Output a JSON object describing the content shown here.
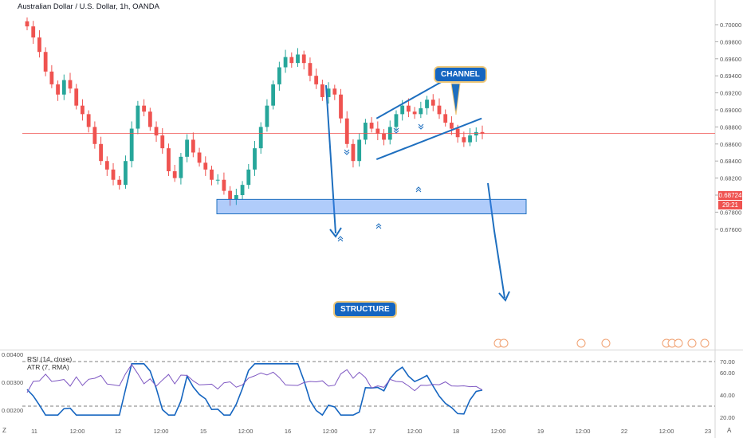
{
  "header": {
    "symbol_title": "Australian Dollar / U.S. Dollar, 1h, OANDA"
  },
  "annotations": {
    "channel": "CHANNEL",
    "structure": "STRUCTURE"
  },
  "current_price": {
    "value": "0.68724",
    "countdown": "29:21"
  },
  "oscillator": {
    "rsi_label": "RSI (14, close)",
    "atr_label": "ATR (7, RMA)"
  },
  "corner_labels": {
    "bottom_left": "Z",
    "bottom_right": "A"
  },
  "colors": {
    "up": "#26a69a",
    "down": "#ef5350",
    "accent": "#1e6fbf",
    "rsi_line": "#1565c0",
    "atr_line": "#7e57c2"
  },
  "chart_data": [
    {
      "type": "candlestick",
      "title": "Australian Dollar / U.S. Dollar, 1h, OANDA",
      "y_axis_ticks": [
        "0.70000",
        "0.69800",
        "0.69600",
        "0.69400",
        "0.69200",
        "0.69000",
        "0.68800",
        "0.68600",
        "0.68400",
        "0.68200",
        "0.68000",
        "0.67800",
        "0.67600"
      ],
      "ylim": [
        0.6755,
        0.702
      ],
      "x_axis_ticks": [
        "11",
        "12:00",
        "12",
        "12:00",
        "15",
        "12:00",
        "16",
        "12:00",
        "17",
        "12:00",
        "18",
        "12:00",
        "19",
        "12:00",
        "22",
        "12:00",
        "23"
      ],
      "close_path_approx": [
        0.6998,
        0.6985,
        0.6968,
        0.6945,
        0.693,
        0.6918,
        0.6935,
        0.6925,
        0.6905,
        0.6895,
        0.688,
        0.686,
        0.684,
        0.683,
        0.6818,
        0.6812,
        0.684,
        0.6878,
        0.6905,
        0.6898,
        0.688,
        0.687,
        0.6855,
        0.6828,
        0.682,
        0.6845,
        0.6865,
        0.685,
        0.6838,
        0.683,
        0.6818,
        0.6818,
        0.6805,
        0.6795,
        0.68,
        0.6812,
        0.683,
        0.6855,
        0.688,
        0.6905,
        0.693,
        0.695,
        0.6962,
        0.6955,
        0.6965,
        0.6955,
        0.694,
        0.693,
        0.6915,
        0.6925,
        0.6918,
        0.689,
        0.686,
        0.684,
        0.6865,
        0.6885,
        0.6878,
        0.6872,
        0.6865,
        0.688,
        0.6895,
        0.6905,
        0.6898,
        0.6895,
        0.6902,
        0.6912,
        0.6905,
        0.6895,
        0.6885,
        0.6878,
        0.6868,
        0.6862,
        0.687,
        0.6874,
        0.6872
      ],
      "current_price": 0.68724,
      "drawings": {
        "channel_upper": [
          [
            17.05,
            0.689
          ],
          [
            17.95,
            0.694
          ]
        ],
        "channel_lower": [
          [
            17.05,
            0.6842
          ],
          [
            18.3,
            0.689
          ]
        ],
        "structure_zone": [
          0.6778,
          0.6795
        ]
      }
    },
    {
      "type": "line",
      "series": [
        {
          "name": "RSI (14, close)",
          "y_axis_ticks": [
            "70.00",
            "60.00",
            "40.00",
            "20.00"
          ],
          "levels": [
            70,
            30
          ]
        },
        {
          "name": "ATR (7, RMA)",
          "y_axis_ticks": [
            "0.00400",
            "0.00300",
            "0.00200"
          ]
        }
      ]
    }
  ]
}
